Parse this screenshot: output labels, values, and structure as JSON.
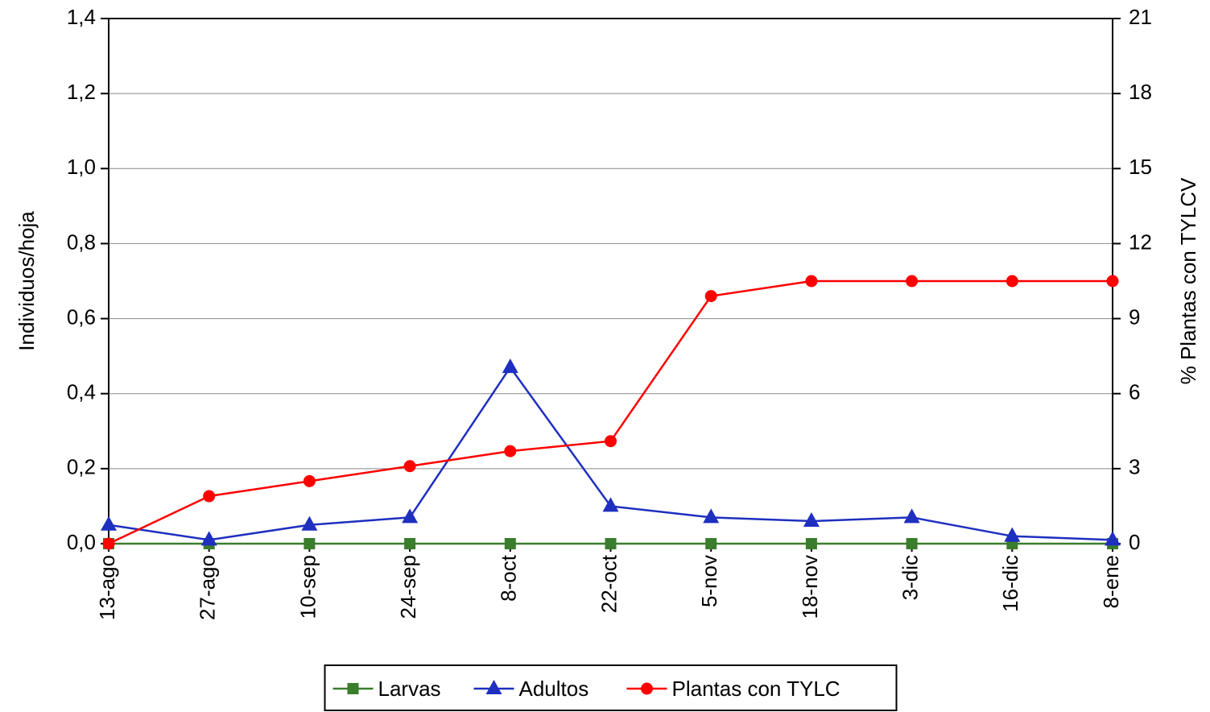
{
  "chart_data": {
    "type": "line",
    "categories": [
      "13-ago",
      "27-ago",
      "10-sep",
      "24-sep",
      "8-oct",
      "22-oct",
      "5-nov",
      "18-nov",
      "3-dic",
      "16-dic",
      "8-ene"
    ],
    "y_label": "Individuos/hoja",
    "y2_label": "% Plantas con TYLCV",
    "ylim": [
      0,
      1.4
    ],
    "yticks": [
      {
        "value": 0,
        "label": "0,0"
      },
      {
        "value": 0.2,
        "label": "0,2"
      },
      {
        "value": 0.4,
        "label": "0,4"
      },
      {
        "value": 0.6,
        "label": "0,6"
      },
      {
        "value": 0.8,
        "label": "0,8"
      },
      {
        "value": 1.0,
        "label": "1,0"
      },
      {
        "value": 1.2,
        "label": "1,2"
      },
      {
        "value": 1.4,
        "label": "1,4"
      }
    ],
    "y2lim": [
      0,
      21
    ],
    "y2ticks": [
      0,
      3,
      6,
      9,
      12,
      15,
      18,
      21
    ],
    "grid": true,
    "legend": "bottom",
    "series": [
      {
        "name": "Larvas",
        "color": "#3a7d2c",
        "marker": "square",
        "values": [
          0,
          0,
          0,
          0,
          0,
          0,
          0,
          0,
          0,
          0,
          0
        ]
      },
      {
        "name": "Adultos",
        "color": "#1f2fbf",
        "marker": "triangle",
        "values": [
          0.05,
          0.01,
          0.05,
          0.07,
          0.47,
          0.1,
          0.07,
          0.06,
          0.07,
          0.02,
          0.01
        ]
      },
      {
        "name": "Plantas con TYLC",
        "color": "#ff0000",
        "marker": "circle",
        "axis": "y2",
        "values": [
          0,
          1.9,
          2.5,
          3.1,
          3.7,
          4.1,
          9.9,
          10.5,
          10.5,
          10.5,
          10.5
        ]
      }
    ]
  }
}
